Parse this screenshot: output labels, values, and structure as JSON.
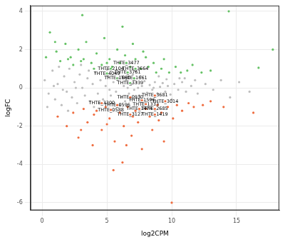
{
  "chart_data": {
    "type": "scatter",
    "x_label": "log2CPM",
    "y_label": "logFC",
    "xlim": [
      -0.9,
      18.3
    ],
    "ylim": [
      -6.4,
      4.3
    ],
    "xticks": [
      0,
      5,
      10,
      15
    ],
    "yticks": [
      -6,
      -4,
      -2,
      0,
      2,
      4
    ],
    "grid": true,
    "marker": "circle",
    "series": [
      {
        "color": "#bebebe",
        "x": [
          0.2,
          0.5,
          0.8,
          1.0,
          1.2,
          1.5,
          1.7,
          1.9,
          2.1,
          2.3,
          2.5,
          2.7,
          2.9,
          3.1,
          3.3,
          3.5,
          3.7,
          3.9,
          4.1,
          4.3,
          4.5,
          4.7,
          4.9,
          5.1,
          5.3,
          5.5,
          5.7,
          5.9,
          6.1,
          6.3,
          6.5,
          6.7,
          6.9,
          7.1,
          7.3,
          7.5,
          7.7,
          7.9,
          8.1,
          8.3,
          8.5,
          8.7,
          8.9,
          9.1,
          9.3,
          9.5,
          9.7,
          9.9,
          10.2,
          10.5,
          10.8,
          11.1,
          11.5,
          12.0,
          12.6,
          13.2,
          13.8,
          14.5,
          15.2,
          16.0,
          1.3,
          0.4,
          2.0,
          3.0,
          4.0,
          5.0,
          6.0,
          7.0,
          8.0,
          9.0,
          10.0,
          11.0,
          3.6,
          4.4,
          5.6,
          6.4,
          7.6,
          8.4,
          2.6,
          5.2,
          6.6,
          7.4,
          8.6,
          9.6,
          10.6,
          11.8,
          0.9,
          1.6
        ],
        "values": [
          0.4,
          -0.3,
          0.9,
          -0.6,
          0.2,
          -0.9,
          0.6,
          -0.2,
          1.0,
          -0.5,
          0.3,
          -0.8,
          0.7,
          0.0,
          -0.4,
          0.5,
          -0.7,
          0.2,
          0.8,
          -0.3,
          0.4,
          -0.6,
          0.1,
          0.6,
          -0.4,
          0.3,
          -0.2,
          0.5,
          -0.5,
          0.1,
          0.4,
          -0.3,
          0.2,
          -0.1,
          0.3,
          -0.4,
          0.1,
          0.35,
          -0.25,
          0.15,
          -0.1,
          0.3,
          -0.3,
          0.05,
          0.25,
          -0.2,
          0.1,
          -0.35,
          0.2,
          -0.1,
          0.3,
          -0.2,
          0.1,
          -0.3,
          0.2,
          -0.1,
          0.4,
          -0.5,
          0.3,
          -0.2,
          1.1,
          -1.0,
          -1.2,
          1.2,
          -1.0,
          0.95,
          -0.9,
          0.7,
          -0.75,
          0.6,
          -0.6,
          0.5,
          0.9,
          -0.8,
          0.8,
          -0.7,
          0.6,
          -0.6,
          0.0,
          -0.1,
          0.0,
          0.0,
          0.0,
          0.45,
          0.5,
          0.4,
          0.1,
          -0.1
        ]
      },
      {
        "color": "#66c266",
        "x": [
          0.3,
          0.6,
          1.1,
          1.4,
          1.8,
          2.2,
          2.4,
          2.8,
          3.1,
          3.2,
          3.4,
          3.8,
          4.2,
          4.6,
          4.8,
          5.2,
          5.4,
          5.8,
          6.2,
          6.0,
          6.4,
          6.8,
          7.2,
          7.6,
          7.8,
          8.2,
          8.6,
          8.8,
          9.2,
          9.4,
          9.8,
          10.3,
          10.7,
          11.2,
          11.6,
          12.3,
          13.0,
          14.4,
          16.7,
          17.8,
          4.0,
          5.0,
          3.0,
          2.0,
          7.0,
          8.0,
          1.0,
          6.5,
          5.3,
          7.2,
          5.0,
          6.6,
          5.8,
          7.1,
          6.8
        ],
        "values": [
          1.6,
          2.9,
          1.9,
          1.4,
          2.3,
          1.6,
          1.2,
          2.0,
          3.8,
          1.5,
          2.4,
          1.3,
          1.8,
          1.2,
          2.6,
          1.5,
          1.1,
          2.0,
          3.2,
          1.3,
          1.7,
          1.1,
          1.5,
          1.0,
          1.9,
          1.1,
          1.3,
          0.8,
          1.0,
          1.5,
          0.8,
          1.1,
          0.8,
          0.9,
          1.2,
          0.8,
          0.9,
          4.0,
          1.05,
          2.0,
          1.0,
          1.3,
          1.4,
          1.5,
          2.3,
          1.6,
          2.4,
          1.3,
          1.0,
          1.0,
          0.75,
          0.8,
          0.5,
          0.5,
          0.25
        ]
      },
      {
        "color": "#ef6c3f",
        "x": [
          1.2,
          1.9,
          2.4,
          2.8,
          3.2,
          3.5,
          3.9,
          4.2,
          4.6,
          4.9,
          5.2,
          5.5,
          5.6,
          6.2,
          6.0,
          6.3,
          6.6,
          6.9,
          7.2,
          7.4,
          7.7,
          8.0,
          8.3,
          8.5,
          8.9,
          9.2,
          9.4,
          9.7,
          10.0,
          10.1,
          10.4,
          10.8,
          11.3,
          11.7,
          12.4,
          13.0,
          14.0,
          16.3,
          4.0,
          5.0,
          7.0,
          9.0,
          3.0,
          6.5,
          6.8,
          8.7,
          4.6,
          7.7,
          9.5,
          5.8,
          8.0,
          8.7,
          5.3,
          7.5,
          6.8,
          8.7
        ],
        "values": [
          -1.5,
          -2.0,
          -1.3,
          -2.6,
          -1.1,
          -1.8,
          -3.0,
          -1.2,
          -2.2,
          -1.0,
          -1.6,
          -4.3,
          -2.8,
          -3.9,
          -1.3,
          -2.0,
          -1.0,
          -2.5,
          -1.2,
          -1.8,
          -3.2,
          -1.1,
          -1.5,
          -2.2,
          -0.9,
          -1.3,
          -2.8,
          -1.0,
          -6.0,
          -1.6,
          -0.9,
          -1.2,
          -0.8,
          -1.0,
          -0.9,
          -0.7,
          -1.0,
          -1.3,
          -1.4,
          -1.9,
          -1.5,
          -1.7,
          -2.2,
          -3.0,
          -0.5,
          -0.4,
          -0.8,
          -0.65,
          -0.7,
          -0.9,
          -0.85,
          -1.1,
          -1.15,
          -1.1,
          -1.4,
          -1.4
        ]
      }
    ],
    "annotations": [
      {
        "text": "THTE_3477",
        "x": 6.5,
        "y": 1.3
      },
      {
        "text": "THTE_2104",
        "x": 5.3,
        "y": 1.0
      },
      {
        "text": "THTE_3664",
        "x": 7.2,
        "y": 1.0
      },
      {
        "text": "THTE_4049",
        "x": 5.0,
        "y": 0.75
      },
      {
        "text": "THTE_3761",
        "x": 6.6,
        "y": 0.8
      },
      {
        "text": "THTE_1660",
        "x": 5.8,
        "y": 0.5
      },
      {
        "text": "THTE_1661",
        "x": 7.1,
        "y": 0.5
      },
      {
        "text": "THTE_3339",
        "x": 6.8,
        "y": 0.25
      },
      {
        "text": "THTE_0930",
        "x": 6.8,
        "y": -0.5
      },
      {
        "text": "THTE_3681",
        "x": 8.7,
        "y": -0.4
      },
      {
        "text": "THTE_3300",
        "x": 4.6,
        "y": -0.8
      },
      {
        "text": "THTE_1596",
        "x": 7.7,
        "y": -0.65
      },
      {
        "text": "THTE_3014",
        "x": 9.5,
        "y": -0.7
      },
      {
        "text": "THTE_0596",
        "x": 5.8,
        "y": -0.9
      },
      {
        "text": "THTE_1333",
        "x": 8.0,
        "y": -0.85
      },
      {
        "text": "THTE_2685",
        "x": 8.7,
        "y": -1.1
      },
      {
        "text": "THTE_0588",
        "x": 5.3,
        "y": -1.15
      },
      {
        "text": "THTE_1474",
        "x": 7.5,
        "y": -1.1
      },
      {
        "text": "THTE_3127",
        "x": 6.8,
        "y": -1.4
      },
      {
        "text": "THTE_1419",
        "x": 8.7,
        "y": -1.4
      }
    ]
  }
}
